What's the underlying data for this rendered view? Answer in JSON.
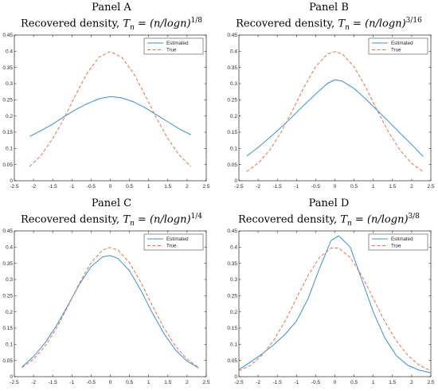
{
  "chart_data": [
    {
      "type": "line",
      "panel": "Panel A",
      "title_text": "Recovered density, ",
      "title_formula": "T",
      "title_sub": "n",
      "title_rest": " = (n/logn)",
      "title_exp": "1/8",
      "xlim": [
        -2.5,
        2.5
      ],
      "ylim": [
        0,
        0.45
      ],
      "xticks": [
        "-2.5",
        "-2",
        "-1.5",
        "-1",
        "-0.5",
        "0",
        "0.5",
        "1",
        "1.5",
        "2",
        "2.5"
      ],
      "yticks": [
        "0",
        "0.05",
        "0.1",
        "0.15",
        "0.2",
        "0.25",
        "0.3",
        "0.35",
        "0.4",
        "0.45"
      ],
      "legend": [
        "Estimated",
        "True"
      ],
      "legend_position": "top-right",
      "series": [
        {
          "name": "Estimated",
          "style": "solid",
          "color": "#3a8fd9",
          "x": [
            -2.1,
            -1.8,
            -1.5,
            -1.2,
            -0.9,
            -0.6,
            -0.3,
            0,
            0.3,
            0.6,
            0.9,
            1.2,
            1.5,
            1.8,
            2.1
          ],
          "y": [
            0.137,
            0.155,
            0.175,
            0.198,
            0.22,
            0.238,
            0.253,
            0.26,
            0.256,
            0.244,
            0.226,
            0.204,
            0.182,
            0.16,
            0.142
          ]
        },
        {
          "name": "True",
          "style": "dashed",
          "color": "#e8704a",
          "x": [
            -2.1,
            -1.8,
            -1.5,
            -1.2,
            -0.9,
            -0.6,
            -0.3,
            0,
            0.3,
            0.6,
            0.9,
            1.2,
            1.5,
            1.8,
            2.1
          ],
          "y": [
            0.044,
            0.079,
            0.13,
            0.194,
            0.266,
            0.333,
            0.381,
            0.399,
            0.381,
            0.333,
            0.266,
            0.194,
            0.13,
            0.079,
            0.044
          ]
        }
      ]
    },
    {
      "type": "line",
      "panel": "Panel B",
      "title_text": "Recovered density, ",
      "title_formula": "T",
      "title_sub": "n",
      "title_rest": " = (n/logn)",
      "title_exp": "3/16",
      "xlim": [
        -2.5,
        2.5
      ],
      "ylim": [
        0,
        0.45
      ],
      "xticks": [
        "-2.5",
        "-2",
        "-1.5",
        "-1",
        "-0.5",
        "0",
        "0.5",
        "1",
        "1.5",
        "2",
        "2.5"
      ],
      "yticks": [
        "0",
        "0.05",
        "0.1",
        "0.15",
        "0.2",
        "0.25",
        "0.3",
        "0.35",
        "0.4",
        "0.45"
      ],
      "legend": [
        "Estimated",
        "True"
      ],
      "legend_position": "top-right",
      "series": [
        {
          "name": "Estimated",
          "style": "solid",
          "color": "#3a8fd9",
          "x": [
            -2.3,
            -2,
            -1.7,
            -1.4,
            -1.1,
            -0.8,
            -0.5,
            -0.2,
            0,
            0.2,
            0.5,
            0.8,
            1.1,
            1.4,
            1.7,
            2,
            2.3
          ],
          "y": [
            0.076,
            0.103,
            0.133,
            0.165,
            0.199,
            0.234,
            0.268,
            0.3,
            0.312,
            0.307,
            0.285,
            0.253,
            0.218,
            0.183,
            0.147,
            0.112,
            0.075
          ]
        },
        {
          "name": "True",
          "style": "dashed",
          "color": "#e8704a",
          "x": [
            -2.3,
            -2,
            -1.7,
            -1.4,
            -1.1,
            -0.8,
            -0.5,
            -0.2,
            0,
            0.2,
            0.5,
            0.8,
            1.1,
            1.4,
            1.7,
            2,
            2.3
          ],
          "y": [
            0.028,
            0.054,
            0.094,
            0.15,
            0.218,
            0.29,
            0.352,
            0.391,
            0.399,
            0.391,
            0.352,
            0.29,
            0.218,
            0.15,
            0.094,
            0.054,
            0.028
          ]
        }
      ]
    },
    {
      "type": "line",
      "panel": "Panel C",
      "title_text": "Recovered density, ",
      "title_formula": "T",
      "title_sub": "n",
      "title_rest": " = (n/logn)",
      "title_exp": "1/4",
      "xlim": [
        -2.5,
        2.5
      ],
      "ylim": [
        0,
        0.45
      ],
      "xticks": [
        "-2.5",
        "-2",
        "-1.5",
        "-1",
        "-0.5",
        "0",
        "0.5",
        "1",
        "1.5",
        "2",
        "2.5"
      ],
      "yticks": [
        "0",
        "0.05",
        "0.1",
        "0.15",
        "0.2",
        "0.25",
        "0.3",
        "0.35",
        "0.4",
        "0.45"
      ],
      "legend": [
        "Estimated",
        "True"
      ],
      "legend_position": "top-right",
      "series": [
        {
          "name": "Estimated",
          "style": "solid",
          "color": "#3a8fd9",
          "x": [
            -2.3,
            -2,
            -1.7,
            -1.4,
            -1.1,
            -0.8,
            -0.5,
            -0.2,
            0,
            0.2,
            0.5,
            0.8,
            1.1,
            1.4,
            1.7,
            2,
            2.3
          ],
          "y": [
            0.03,
            0.062,
            0.104,
            0.158,
            0.221,
            0.286,
            0.34,
            0.37,
            0.374,
            0.365,
            0.327,
            0.266,
            0.196,
            0.133,
            0.082,
            0.048,
            0.027
          ]
        },
        {
          "name": "True",
          "style": "dashed",
          "color": "#e8704a",
          "x": [
            -2.3,
            -2,
            -1.7,
            -1.4,
            -1.1,
            -0.8,
            -0.5,
            -0.2,
            0,
            0.2,
            0.5,
            0.8,
            1.1,
            1.4,
            1.7,
            2,
            2.3
          ],
          "y": [
            0.028,
            0.054,
            0.094,
            0.15,
            0.218,
            0.29,
            0.352,
            0.391,
            0.399,
            0.391,
            0.352,
            0.29,
            0.218,
            0.15,
            0.094,
            0.054,
            0.028
          ]
        }
      ]
    },
    {
      "type": "line",
      "panel": "Panel D",
      "title_text": "Recovered density, ",
      "title_formula": "T",
      "title_sub": "n",
      "title_rest": " = (n/logn)",
      "title_exp": "3/8",
      "xlim": [
        -2.5,
        2.5
      ],
      "ylim": [
        0,
        0.45
      ],
      "xticks": [
        "-2.5",
        "-2",
        "-1.5",
        "-1",
        "-0.5",
        "0",
        "0.5",
        "1",
        "1.5",
        "2",
        "2.5"
      ],
      "yticks": [
        "0",
        "0.05",
        "0.1",
        "0.15",
        "0.2",
        "0.25",
        "0.3",
        "0.35",
        "0.4",
        "0.45"
      ],
      "legend": [
        "Estimated",
        "True"
      ],
      "legend_position": "top-right",
      "series": [
        {
          "name": "Estimated",
          "style": "solid",
          "color": "#3a8fd9",
          "x": [
            -2.5,
            -2.2,
            -1.9,
            -1.6,
            -1.3,
            -1,
            -0.7,
            -0.4,
            -0.1,
            0.1,
            0.4,
            0.7,
            1,
            1.3,
            1.6,
            1.9,
            2.2,
            2.5
          ],
          "y": [
            0.022,
            0.045,
            0.07,
            0.098,
            0.13,
            0.172,
            0.24,
            0.335,
            0.42,
            0.435,
            0.4,
            0.3,
            0.2,
            0.12,
            0.065,
            0.035,
            0.02,
            0.012
          ]
        },
        {
          "name": "True",
          "style": "dashed",
          "color": "#e8704a",
          "x": [
            -2.5,
            -2.2,
            -1.9,
            -1.6,
            -1.3,
            -1,
            -0.7,
            -0.4,
            -0.1,
            0.1,
            0.4,
            0.7,
            1,
            1.3,
            1.6,
            1.9,
            2.2,
            2.5
          ],
          "y": [
            0.018,
            0.035,
            0.066,
            0.111,
            0.171,
            0.242,
            0.312,
            0.368,
            0.397,
            0.397,
            0.368,
            0.312,
            0.242,
            0.171,
            0.111,
            0.066,
            0.035,
            0.018
          ]
        }
      ]
    }
  ]
}
